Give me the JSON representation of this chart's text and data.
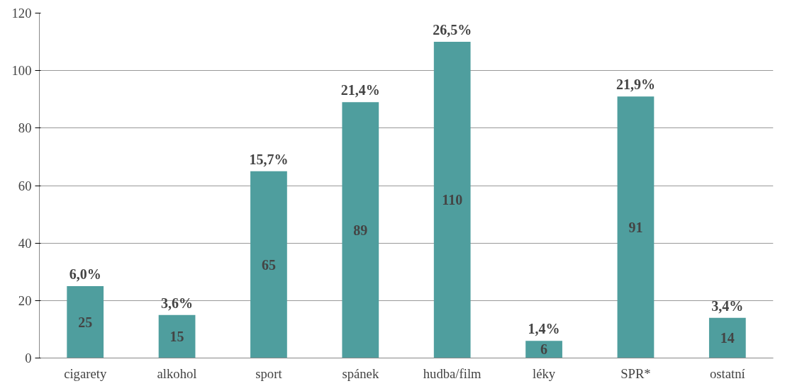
{
  "chart_data": {
    "type": "bar",
    "categories": [
      "cigarety",
      "alkohol",
      "sport",
      "spánek",
      "hudba/film",
      "léky",
      "SPR*",
      "ostatní"
    ],
    "values": [
      25,
      15,
      65,
      89,
      110,
      6,
      91,
      14
    ],
    "color": "#4f9e9e",
    "ylim": [
      0,
      120
    ],
    "yticks": [
      0,
      20,
      40,
      60,
      80,
      100,
      120
    ],
    "grid": "y",
    "data_labels": true,
    "annotations": [
      {
        "text": "6,0%",
        "x": "cigarety",
        "y": 25
      },
      {
        "text": "3,6%",
        "x": "alkohol",
        "y": 15
      },
      {
        "text": "15,7%",
        "x": "sport",
        "y": 65
      },
      {
        "text": "21,4%",
        "x": "spánek",
        "y": 89
      },
      {
        "text": "26,5%",
        "x": "hudba/film",
        "y": 110
      },
      {
        "text": "1,4%",
        "x": "léky",
        "y": 6
      },
      {
        "text": "21,9%",
        "x": "SPR*",
        "y": 91
      },
      {
        "text": "3,4%",
        "x": "ostatní",
        "y": 14
      }
    ]
  }
}
